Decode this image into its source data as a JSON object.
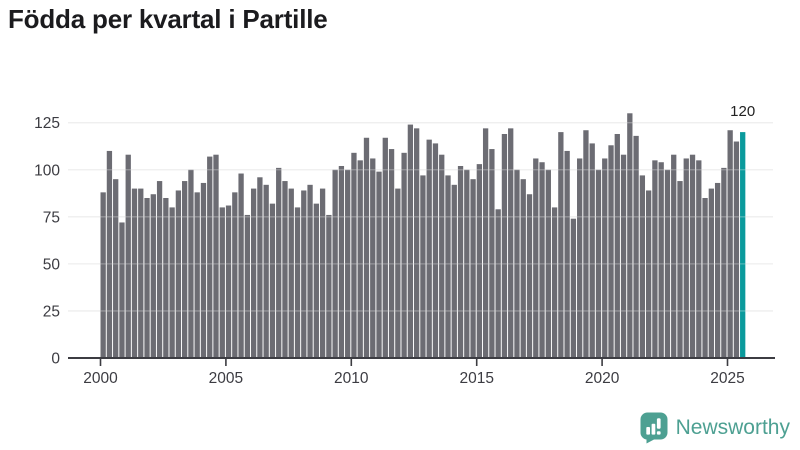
{
  "title": "Födda per kvartal i Partille",
  "annotation": {
    "last_value_label": "120"
  },
  "branding": {
    "wordmark": "Newsworthy",
    "logo_icon": "newsworthy-chart-bubble-icon"
  },
  "colors": {
    "bar": "#6c6c73",
    "highlight": "#0a9a9c",
    "axis_text": "#3c3c42",
    "axis_line": "#3c3c42",
    "grid": "#e9e9e9",
    "title_text": "#1b1b1e",
    "annotation_text": "#222222",
    "brand": "#4da092",
    "background": "#ffffff"
  },
  "chart_data": {
    "type": "bar",
    "title": "Födda per kvartal i Partille",
    "xlabel": "",
    "ylabel": "",
    "x_unit": "quarter",
    "x_range": "2000Q1-2025Q3",
    "x_start_year": 2000,
    "x_tick_labels": [
      "2000",
      "2005",
      "2010",
      "2015",
      "2020",
      "2025"
    ],
    "y_tick_labels": [
      "0",
      "25",
      "50",
      "75",
      "100",
      "125"
    ],
    "ylim": [
      0,
      130
    ],
    "grid": true,
    "legend": false,
    "highlight_last_bar": true,
    "highlight_value": 120,
    "values": [
      88,
      110,
      95,
      72,
      108,
      90,
      90,
      85,
      87,
      94,
      85,
      80,
      89,
      94,
      100,
      88,
      93,
      107,
      108,
      80,
      81,
      88,
      98,
      76,
      90,
      96,
      92,
      82,
      101,
      94,
      90,
      80,
      89,
      92,
      82,
      90,
      76,
      100,
      102,
      100,
      109,
      105,
      117,
      106,
      99,
      117,
      111,
      90,
      109,
      124,
      122,
      97,
      116,
      114,
      108,
      97,
      92,
      102,
      100,
      95,
      103,
      122,
      111,
      79,
      119,
      122,
      100,
      95,
      87,
      106,
      104,
      100,
      80,
      120,
      110,
      74,
      106,
      121,
      114,
      100,
      106,
      113,
      119,
      108,
      130,
      118,
      97,
      89,
      105,
      104,
      100,
      108,
      94,
      106,
      108,
      105,
      85,
      90,
      93,
      101,
      121,
      115,
      120
    ]
  }
}
